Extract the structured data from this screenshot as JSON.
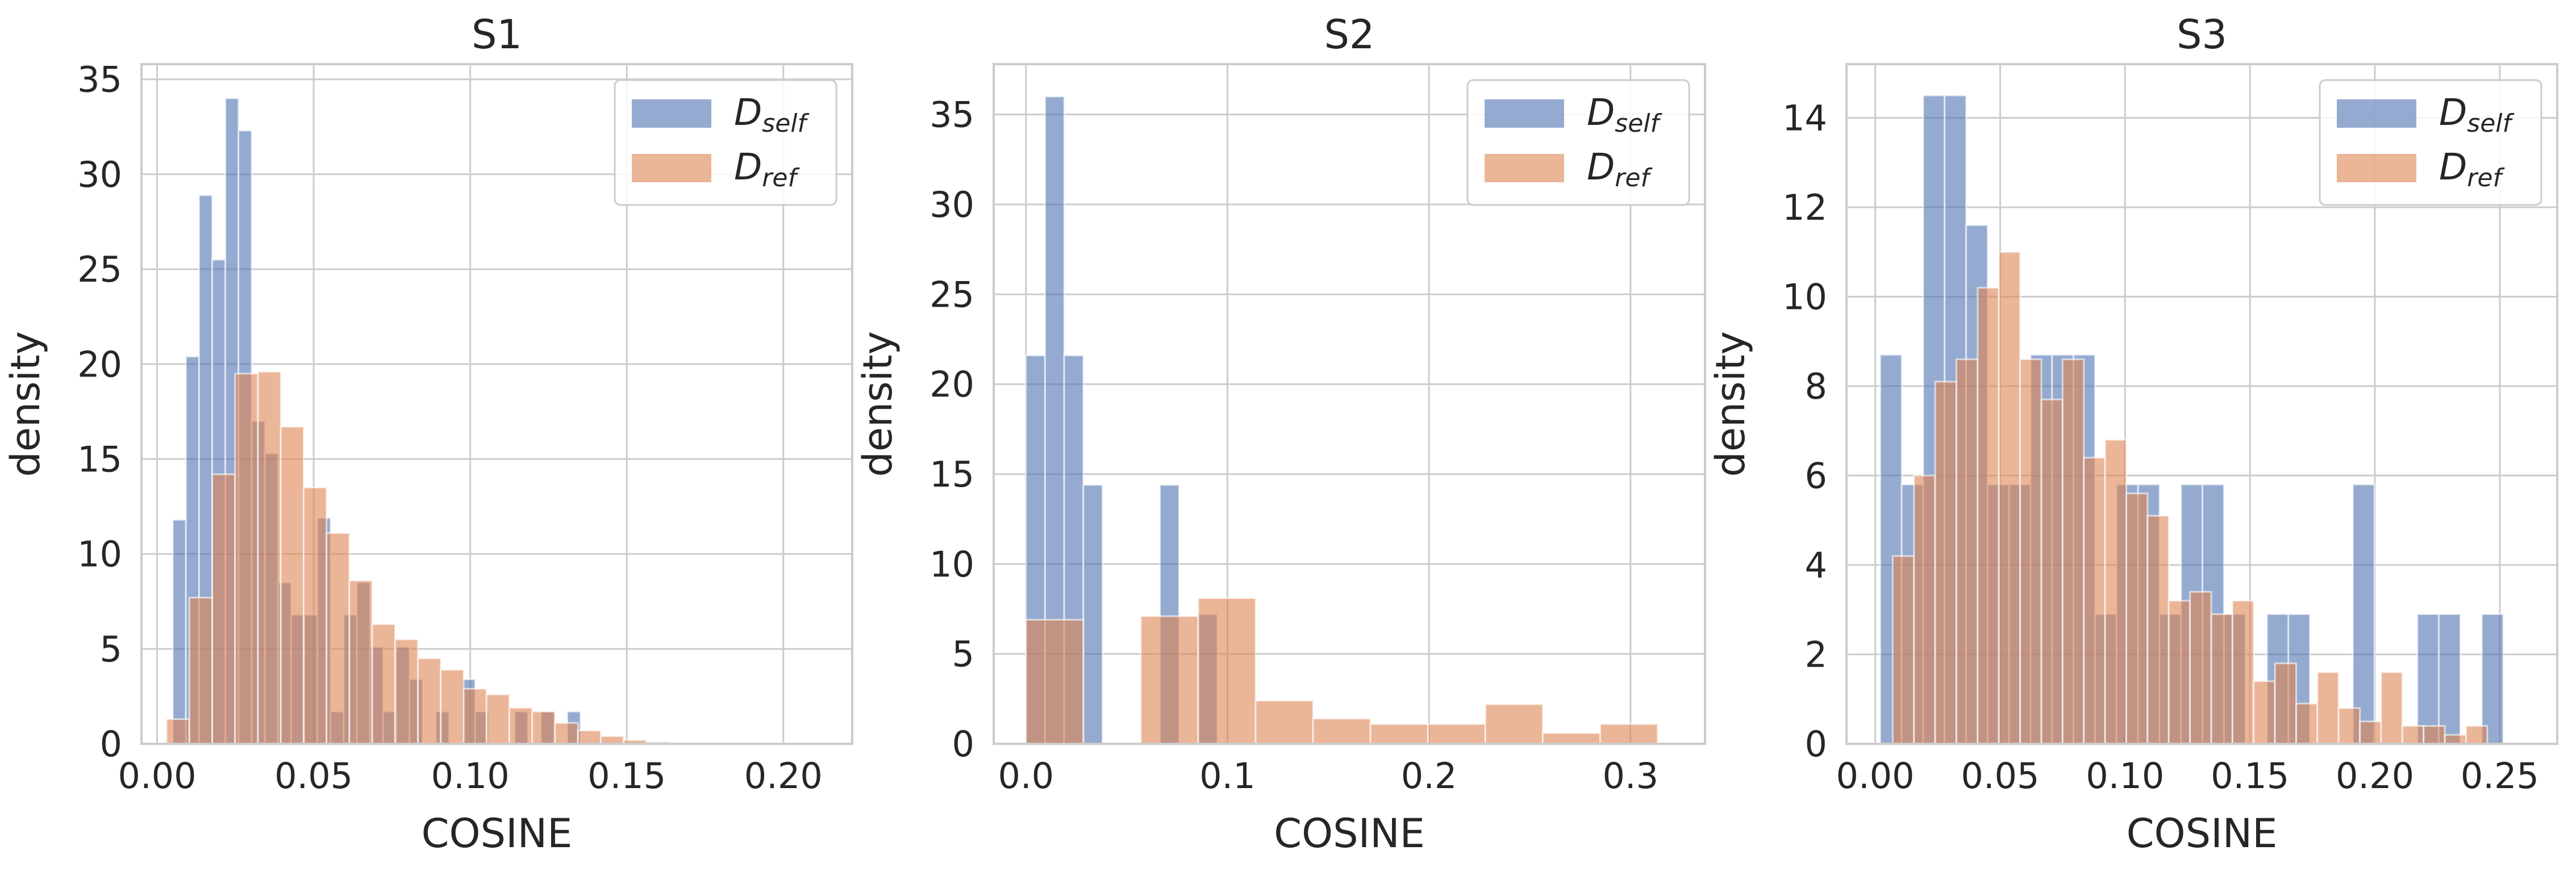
{
  "figure": {
    "colors": {
      "self": "#4c72b0",
      "ref": "#dd8452"
    },
    "bar_alpha": 0.6
  },
  "chart_data": [
    {
      "type": "bar",
      "title": "S1",
      "xlabel": "COSINE",
      "ylabel": "density",
      "xlim": [
        -0.005,
        0.222
      ],
      "ylim": [
        0,
        35.8
      ],
      "xticks": [
        0.0,
        0.05,
        0.1,
        0.15,
        0.2
      ],
      "xtick_labels": [
        "0.00",
        "0.05",
        "0.10",
        "0.15",
        "0.20"
      ],
      "yticks": [
        0,
        5,
        10,
        15,
        20,
        25,
        30,
        35
      ],
      "ytick_labels": [
        "0",
        "5",
        "10",
        "15",
        "20",
        "25",
        "30",
        "35"
      ],
      "grid": true,
      "legend_position": "upper right",
      "legend": [
        {
          "series": "self",
          "label_main": "D",
          "label_sub": "self"
        },
        {
          "series": "ref",
          "label_main": "D",
          "label_sub": "ref"
        }
      ],
      "series": [
        {
          "key": "self",
          "bin_start": 0.005,
          "bin_width": 0.0042,
          "values": [
            11.8,
            20.4,
            28.9,
            25.5,
            34.0,
            32.3,
            17.0,
            15.3,
            8.5,
            6.8,
            6.8,
            11.9,
            1.7,
            6.8,
            8.5,
            5.1,
            1.7,
            5.1,
            3.4,
            0,
            1.7,
            0,
            3.4,
            1.7,
            0,
            0,
            1.7,
            0,
            1.7,
            0,
            1.7
          ]
        },
        {
          "key": "ref",
          "bin_start": 0.003,
          "bin_width": 0.0073,
          "values": [
            1.3,
            7.7,
            14.2,
            19.5,
            19.6,
            16.7,
            13.5,
            11.1,
            8.6,
            6.3,
            5.5,
            4.5,
            3.9,
            2.9,
            2.6,
            1.9,
            1.7,
            1.1,
            0.7,
            0.4,
            0.2,
            0.1,
            0.06,
            0.03
          ]
        }
      ]
    },
    {
      "type": "bar",
      "title": "S2",
      "xlabel": "COSINE",
      "ylabel": "density",
      "xlim": [
        -0.016,
        0.337
      ],
      "ylim": [
        0,
        37.8
      ],
      "xticks": [
        0.0,
        0.1,
        0.2,
        0.3
      ],
      "xtick_labels": [
        "0.0",
        "0.1",
        "0.2",
        "0.3"
      ],
      "yticks": [
        0,
        5,
        10,
        15,
        20,
        25,
        30,
        35
      ],
      "ytick_labels": [
        "0",
        "5",
        "10",
        "15",
        "20",
        "25",
        "30",
        "35"
      ],
      "grid": true,
      "legend_position": "upper right",
      "legend": [
        {
          "series": "self",
          "label_main": "D",
          "label_sub": "self"
        },
        {
          "series": "ref",
          "label_main": "D",
          "label_sub": "ref"
        }
      ],
      "series": [
        {
          "key": "self",
          "bin_start": 0.0,
          "bin_width": 0.0095,
          "values": [
            21.6,
            36.0,
            21.6,
            14.4,
            0,
            0,
            0,
            14.4,
            0,
            7.2
          ]
        },
        {
          "key": "ref",
          "bin_start": 0.0,
          "bin_width": 0.0285,
          "values": [
            6.9,
            0,
            7.1,
            8.1,
            2.4,
            1.4,
            1.1,
            1.1,
            2.2,
            0.6,
            1.1
          ]
        }
      ]
    },
    {
      "type": "bar",
      "title": "S3",
      "xlabel": "COSINE",
      "ylabel": "density",
      "xlim": [
        -0.0115,
        0.273
      ],
      "ylim": [
        0,
        15.2
      ],
      "xticks": [
        0.0,
        0.05,
        0.1,
        0.15,
        0.2,
        0.25
      ],
      "xtick_labels": [
        "0.00",
        "0.05",
        "0.10",
        "0.15",
        "0.20",
        "0.25"
      ],
      "yticks": [
        0,
        2,
        4,
        6,
        8,
        10,
        12,
        14
      ],
      "ytick_labels": [
        "0",
        "2",
        "4",
        "6",
        "8",
        "10",
        "12",
        "14"
      ],
      "grid": true,
      "legend_position": "upper right",
      "legend": [
        {
          "series": "self",
          "label_main": "D",
          "label_sub": "self"
        },
        {
          "series": "ref",
          "label_main": "D",
          "label_sub": "ref"
        }
      ],
      "series": [
        {
          "key": "self",
          "bin_start": 0.002,
          "bin_width": 0.0086,
          "values": [
            8.7,
            5.8,
            14.5,
            14.5,
            11.6,
            5.8,
            5.8,
            8.7,
            8.7,
            8.7,
            2.9,
            5.8,
            5.8,
            2.9,
            5.8,
            5.8,
            2.9,
            0,
            2.9,
            2.9,
            0,
            0,
            5.8,
            0,
            0,
            2.9,
            2.9,
            0,
            2.9
          ]
        },
        {
          "key": "ref",
          "bin_start": 0.007,
          "bin_width": 0.0085,
          "values": [
            4.2,
            6.0,
            8.1,
            8.6,
            10.2,
            11.0,
            8.6,
            7.7,
            8.6,
            6.4,
            6.8,
            5.6,
            5.1,
            3.2,
            3.4,
            2.9,
            3.2,
            1.4,
            1.8,
            0.9,
            1.6,
            0.8,
            0.5,
            1.6,
            0.4,
            0.4,
            0.2,
            0.4
          ]
        }
      ]
    }
  ]
}
